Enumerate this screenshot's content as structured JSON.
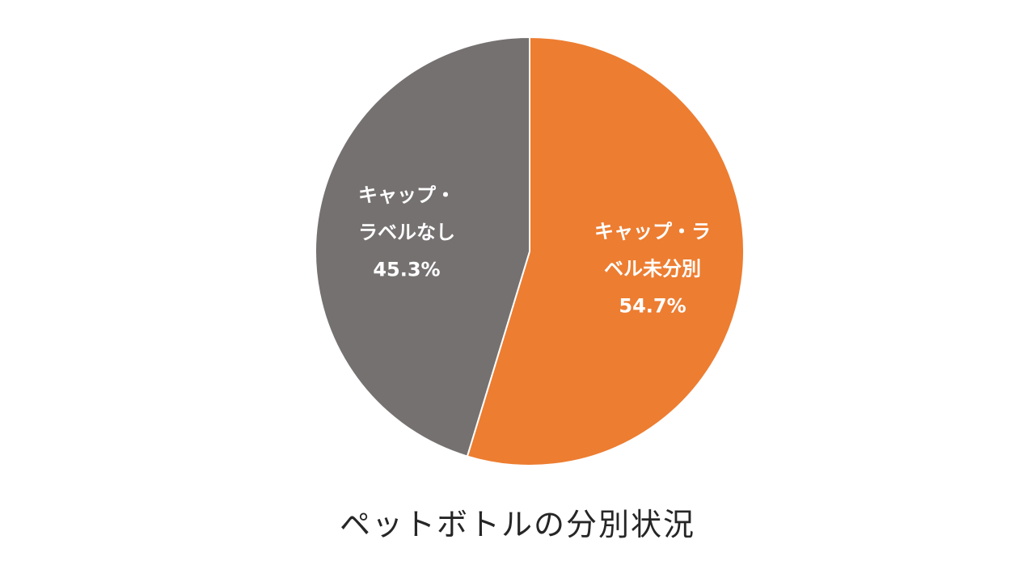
{
  "chart_data": {
    "type": "pie",
    "title": "ペットボトルの分別状況",
    "slices": [
      {
        "name": "キャップ・ラベル未分別",
        "label_lines": [
          "キャップ・ラ",
          "ベル未分別"
        ],
        "value": 54.7,
        "value_label": "54.7%",
        "color": "#ED7D31"
      },
      {
        "name": "キャップ・ラベルなし",
        "label_lines": [
          "キャップ・",
          "ラベルなし"
        ],
        "value": 45.3,
        "value_label": "45.3%",
        "color": "#767171"
      }
    ],
    "legend": false
  }
}
